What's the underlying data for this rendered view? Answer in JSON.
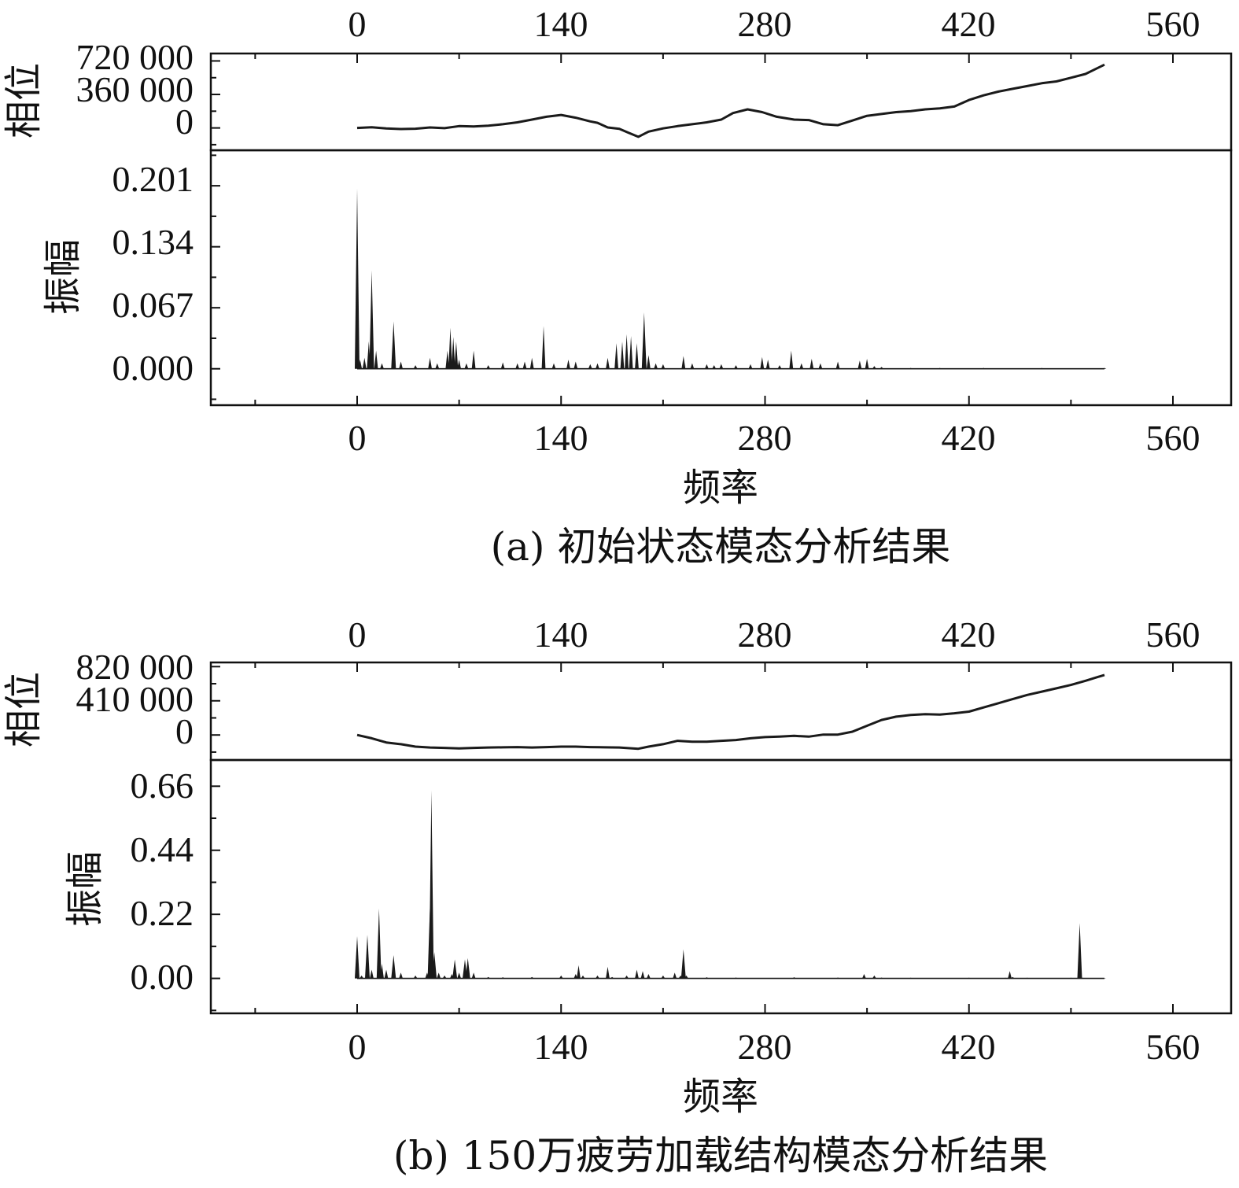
{
  "charts": [
    {
      "caption": "(a) 初始状态模态分析结果",
      "xlabel": "频率",
      "x_ticks": [
        "0",
        "140",
        "280",
        "420",
        "560"
      ],
      "phase": {
        "ylabel": "相位",
        "y_ticks": [
          "720 000",
          "360 000",
          "0"
        ]
      },
      "amplitude": {
        "ylabel": "振幅",
        "y_ticks": [
          "0.201",
          "0.134",
          "0.067",
          "0.000"
        ]
      }
    },
    {
      "caption": "(b) 150万疲劳加载结构模态分析结果",
      "xlabel": "频率",
      "x_ticks": [
        "0",
        "140",
        "280",
        "420",
        "560"
      ],
      "phase": {
        "ylabel": "相位",
        "y_ticks": [
          "820 000",
          "410 000",
          "0"
        ]
      },
      "amplitude": {
        "ylabel": "振幅",
        "y_ticks": [
          "0.66",
          "0.44",
          "0.22",
          "0.00"
        ]
      }
    }
  ],
  "chart_data": [
    {
      "type": "line",
      "panel": "a",
      "x_range": [
        -100,
        600
      ],
      "x_ticks": [
        0,
        140,
        280,
        420,
        560
      ],
      "phase": {
        "y_ticks": [
          0,
          360000,
          720000
        ],
        "ylim": [
          -240000,
          800000
        ],
        "points": [
          [
            0,
            0
          ],
          [
            10,
            8000
          ],
          [
            20,
            -5000
          ],
          [
            30,
            -12000
          ],
          [
            40,
            -8000
          ],
          [
            50,
            5000
          ],
          [
            60,
            -2000
          ],
          [
            70,
            20000
          ],
          [
            80,
            15000
          ],
          [
            90,
            25000
          ],
          [
            100,
            40000
          ],
          [
            110,
            60000
          ],
          [
            120,
            90000
          ],
          [
            130,
            120000
          ],
          [
            140,
            140000
          ],
          [
            150,
            110000
          ],
          [
            160,
            70000
          ],
          [
            165,
            55000
          ],
          [
            172,
            5000
          ],
          [
            180,
            -10000
          ],
          [
            186,
            -50000
          ],
          [
            193,
            -95000
          ],
          [
            200,
            -40000
          ],
          [
            210,
            -5000
          ],
          [
            220,
            20000
          ],
          [
            230,
            40000
          ],
          [
            240,
            60000
          ],
          [
            250,
            90000
          ],
          [
            258,
            160000
          ],
          [
            268,
            200000
          ],
          [
            278,
            170000
          ],
          [
            288,
            120000
          ],
          [
            300,
            90000
          ],
          [
            310,
            85000
          ],
          [
            320,
            40000
          ],
          [
            330,
            30000
          ],
          [
            340,
            80000
          ],
          [
            350,
            130000
          ],
          [
            360,
            150000
          ],
          [
            370,
            170000
          ],
          [
            380,
            180000
          ],
          [
            390,
            200000
          ],
          [
            400,
            210000
          ],
          [
            410,
            230000
          ],
          [
            420,
            300000
          ],
          [
            430,
            350000
          ],
          [
            440,
            390000
          ],
          [
            450,
            420000
          ],
          [
            460,
            450000
          ],
          [
            470,
            480000
          ],
          [
            480,
            500000
          ],
          [
            490,
            540000
          ],
          [
            500,
            580000
          ],
          [
            513,
            680000
          ]
        ]
      },
      "amplitude": {
        "y_ticks": [
          0,
          0.067,
          0.134,
          0.201
        ],
        "ylim": [
          -0.04,
          0.24
        ],
        "peaks": [
          [
            0,
            0.198
          ],
          [
            2,
            0.01
          ],
          [
            5,
            0.012
          ],
          [
            8,
            0.03
          ],
          [
            10,
            0.108
          ],
          [
            13,
            0.02
          ],
          [
            17,
            0.006
          ],
          [
            25,
            0.052
          ],
          [
            30,
            0.008
          ],
          [
            40,
            0.004
          ],
          [
            50,
            0.012
          ],
          [
            55,
            0.006
          ],
          [
            62,
            0.02
          ],
          [
            64,
            0.045
          ],
          [
            66,
            0.035
          ],
          [
            68,
            0.03
          ],
          [
            70,
            0.01
          ],
          [
            75,
            0.006
          ],
          [
            80,
            0.02
          ],
          [
            90,
            0.004
          ],
          [
            100,
            0.007
          ],
          [
            110,
            0.006
          ],
          [
            115,
            0.008
          ],
          [
            120,
            0.012
          ],
          [
            128,
            0.047
          ],
          [
            135,
            0.006
          ],
          [
            145,
            0.01
          ],
          [
            150,
            0.008
          ],
          [
            160,
            0.005
          ],
          [
            165,
            0.006
          ],
          [
            172,
            0.012
          ],
          [
            178,
            0.028
          ],
          [
            182,
            0.03
          ],
          [
            185,
            0.038
          ],
          [
            188,
            0.036
          ],
          [
            192,
            0.028
          ],
          [
            197,
            0.062
          ],
          [
            200,
            0.015
          ],
          [
            205,
            0.006
          ],
          [
            210,
            0.005
          ],
          [
            224,
            0.014
          ],
          [
            230,
            0.006
          ],
          [
            240,
            0.005
          ],
          [
            245,
            0.004
          ],
          [
            250,
            0.005
          ],
          [
            260,
            0.004
          ],
          [
            270,
            0.005
          ],
          [
            278,
            0.013
          ],
          [
            282,
            0.01
          ],
          [
            290,
            0.004
          ],
          [
            298,
            0.02
          ],
          [
            305,
            0.006
          ],
          [
            312,
            0.011
          ],
          [
            318,
            0.006
          ],
          [
            330,
            0.008
          ],
          [
            345,
            0.009
          ],
          [
            350,
            0.011
          ],
          [
            355,
            0.003
          ],
          [
            360,
            0.002
          ],
          [
            380,
            0.001
          ],
          [
            400,
            0.001
          ],
          [
            430,
            0.001
          ],
          [
            470,
            0.001
          ],
          [
            513,
            0.001
          ]
        ]
      }
    },
    {
      "type": "line",
      "panel": "b",
      "x_range": [
        -100,
        600
      ],
      "x_ticks": [
        0,
        140,
        280,
        420,
        560
      ],
      "phase": {
        "y_ticks": [
          0,
          410000,
          820000
        ],
        "ylim": [
          -300000,
          870000
        ],
        "points": [
          [
            0,
            0
          ],
          [
            10,
            -40000
          ],
          [
            20,
            -90000
          ],
          [
            30,
            -110000
          ],
          [
            40,
            -140000
          ],
          [
            50,
            -150000
          ],
          [
            60,
            -155000
          ],
          [
            70,
            -160000
          ],
          [
            80,
            -155000
          ],
          [
            90,
            -150000
          ],
          [
            100,
            -148000
          ],
          [
            110,
            -145000
          ],
          [
            120,
            -150000
          ],
          [
            130,
            -145000
          ],
          [
            140,
            -140000
          ],
          [
            150,
            -140000
          ],
          [
            160,
            -145000
          ],
          [
            170,
            -148000
          ],
          [
            180,
            -150000
          ],
          [
            193,
            -165000
          ],
          [
            200,
            -140000
          ],
          [
            210,
            -110000
          ],
          [
            220,
            -70000
          ],
          [
            230,
            -80000
          ],
          [
            240,
            -80000
          ],
          [
            250,
            -70000
          ],
          [
            260,
            -60000
          ],
          [
            270,
            -40000
          ],
          [
            280,
            -25000
          ],
          [
            290,
            -20000
          ],
          [
            300,
            -10000
          ],
          [
            310,
            -20000
          ],
          [
            320,
            5000
          ],
          [
            330,
            5000
          ],
          [
            340,
            40000
          ],
          [
            350,
            110000
          ],
          [
            360,
            180000
          ],
          [
            370,
            220000
          ],
          [
            380,
            240000
          ],
          [
            390,
            250000
          ],
          [
            400,
            245000
          ],
          [
            410,
            260000
          ],
          [
            420,
            280000
          ],
          [
            430,
            330000
          ],
          [
            440,
            380000
          ],
          [
            450,
            430000
          ],
          [
            460,
            480000
          ],
          [
            470,
            520000
          ],
          [
            480,
            560000
          ],
          [
            490,
            600000
          ],
          [
            500,
            650000
          ],
          [
            513,
            720000
          ]
        ]
      },
      "amplitude": {
        "y_ticks": [
          0,
          0.22,
          0.44,
          0.66
        ],
        "ylim": [
          -0.12,
          0.75
        ],
        "peaks": [
          [
            0,
            0.145
          ],
          [
            3,
            0.01
          ],
          [
            7,
            0.15
          ],
          [
            10,
            0.03
          ],
          [
            15,
            0.24
          ],
          [
            17,
            0.05
          ],
          [
            20,
            0.03
          ],
          [
            25,
            0.08
          ],
          [
            30,
            0.02
          ],
          [
            40,
            0.01
          ],
          [
            48,
            0.02
          ],
          [
            50,
            0.25
          ],
          [
            51,
            0.645
          ],
          [
            53,
            0.09
          ],
          [
            56,
            0.02
          ],
          [
            60,
            0.01
          ],
          [
            65,
            0.015
          ],
          [
            67,
            0.065
          ],
          [
            70,
            0.02
          ],
          [
            74,
            0.065
          ],
          [
            76,
            0.07
          ],
          [
            80,
            0.02
          ],
          [
            90,
            0.005
          ],
          [
            100,
            0.004
          ],
          [
            120,
            0.005
          ],
          [
            140,
            0.01
          ],
          [
            150,
            0.015
          ],
          [
            152,
            0.045
          ],
          [
            155,
            0.01
          ],
          [
            165,
            0.01
          ],
          [
            172,
            0.04
          ],
          [
            175,
            0.005
          ],
          [
            185,
            0.01
          ],
          [
            192,
            0.03
          ],
          [
            196,
            0.025
          ],
          [
            200,
            0.015
          ],
          [
            210,
            0.01
          ],
          [
            218,
            0.02
          ],
          [
            222,
            0.01
          ],
          [
            224,
            0.1
          ],
          [
            226,
            0.01
          ],
          [
            240,
            0.004
          ],
          [
            260,
            0.003
          ],
          [
            300,
            0.004
          ],
          [
            330,
            0.003
          ],
          [
            348,
            0.015
          ],
          [
            355,
            0.01
          ],
          [
            360,
            0.003
          ],
          [
            380,
            0.002
          ],
          [
            420,
            0.002
          ],
          [
            445,
            0.002
          ],
          [
            448,
            0.025
          ],
          [
            450,
            0.005
          ],
          [
            460,
            0.002
          ],
          [
            490,
            0.002
          ],
          [
            496,
            0.19
          ],
          [
            498,
            0.002
          ],
          [
            513,
            0.001
          ]
        ]
      }
    }
  ]
}
